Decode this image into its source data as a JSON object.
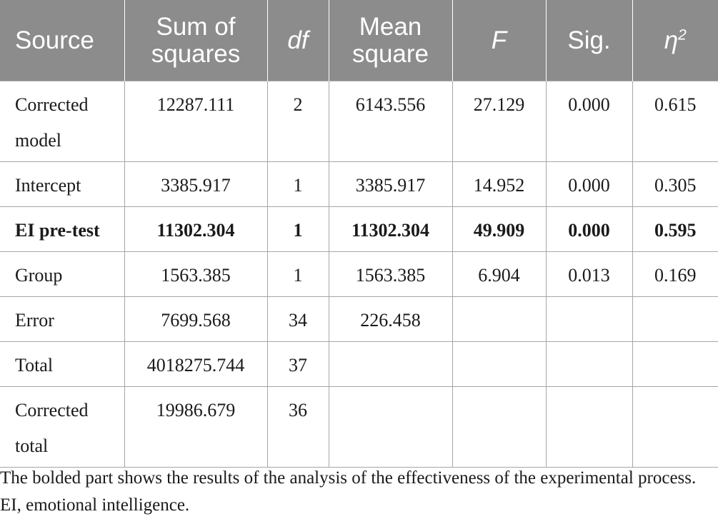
{
  "table": {
    "headers": [
      {
        "text": "Source",
        "italic": false
      },
      {
        "text": "Sum of squares",
        "italic": false
      },
      {
        "text": "df",
        "italic": true
      },
      {
        "text": "Mean square",
        "italic": false
      },
      {
        "text": "F",
        "italic": true
      },
      {
        "text": "Sig.",
        "italic": false
      },
      {
        "text": "η",
        "italic": true,
        "sup": "2"
      }
    ],
    "rows": [
      {
        "cells": [
          "Corrected model",
          "12287.111",
          "2",
          "6143.556",
          "27.129",
          "0.000",
          "0.615"
        ],
        "bold": false
      },
      {
        "cells": [
          "Intercept",
          "3385.917",
          "1",
          "3385.917",
          "14.952",
          "0.000",
          "0.305"
        ],
        "bold": false
      },
      {
        "cells": [
          "EI pre-test",
          "11302.304",
          "1",
          "11302.304",
          "49.909",
          "0.000",
          "0.595"
        ],
        "bold": true
      },
      {
        "cells": [
          "Group",
          "1563.385",
          "1",
          "1563.385",
          "6.904",
          "0.013",
          "0.169"
        ],
        "bold": false
      },
      {
        "cells": [
          "Error",
          "7699.568",
          "34",
          "226.458",
          "",
          "",
          ""
        ],
        "bold": false
      },
      {
        "cells": [
          "Total",
          "4018275.744",
          "37",
          "",
          "",
          "",
          ""
        ],
        "bold": false
      },
      {
        "cells": [
          "Corrected total",
          "19986.679",
          "36",
          "",
          "",
          "",
          ""
        ],
        "bold": false
      }
    ]
  },
  "footnote": "The bolded part shows the results of the analysis of the effectiveness of the experimental process. EI, emotional intelligence.",
  "colors": {
    "header_bg": "#8c8c8c",
    "header_text": "#ffffff",
    "border": "#a6a6a6"
  }
}
